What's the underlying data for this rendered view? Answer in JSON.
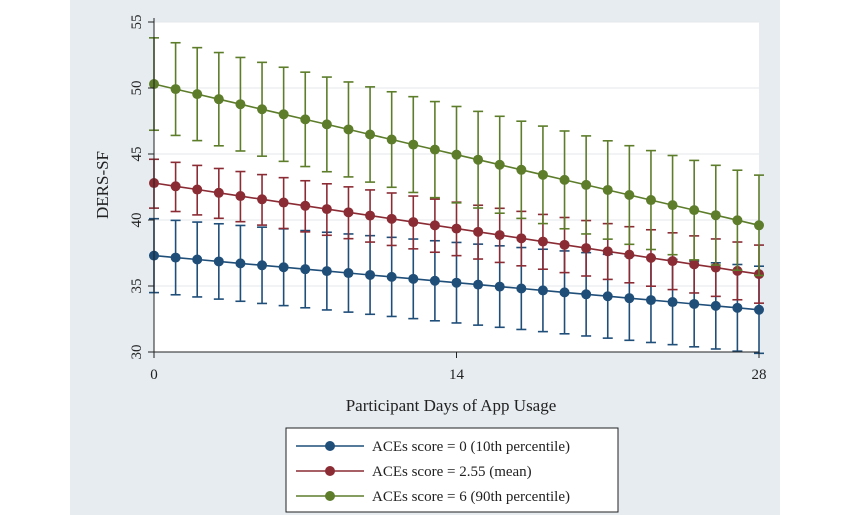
{
  "chart_data": {
    "type": "line",
    "xlabel": "Participant Days of App Usage",
    "ylabel": "DERS-SF",
    "xlim": [
      0,
      28
    ],
    "ylim": [
      30,
      55
    ],
    "x_ticks": [
      0,
      14,
      28
    ],
    "y_ticks": [
      30,
      35,
      40,
      45,
      50,
      55
    ],
    "grid": "horizontal",
    "legend_placement": "bottom",
    "x": [
      0,
      1,
      2,
      3,
      4,
      5,
      6,
      7,
      8,
      9,
      10,
      11,
      12,
      13,
      14,
      15,
      16,
      17,
      18,
      19,
      20,
      21,
      22,
      23,
      24,
      25,
      26,
      27,
      28
    ],
    "series": [
      {
        "name": "ACEs score = 0 (10th percentile)",
        "color": "#1f4e79",
        "start": 37.3,
        "end": 33.2,
        "ci_low_start": 34.5,
        "ci_low_end": 29.9,
        "ci_high_start": 40.1,
        "ci_high_end": 36.5
      },
      {
        "name": "ACEs score = 2.55 (mean)",
        "color": "#8b2c35",
        "start": 42.8,
        "end": 35.9,
        "ci_low_start": 40.9,
        "ci_low_end": 33.7,
        "ci_high_start": 44.6,
        "ci_high_end": 38.1
      },
      {
        "name": "ACEs score = 6 (90th percentile)",
        "color": "#5d7d2b",
        "start": 50.3,
        "end": 39.6,
        "ci_low_start": 46.8,
        "ci_low_end": 35.8,
        "ci_high_start": 53.8,
        "ci_high_end": 43.4
      }
    ]
  }
}
